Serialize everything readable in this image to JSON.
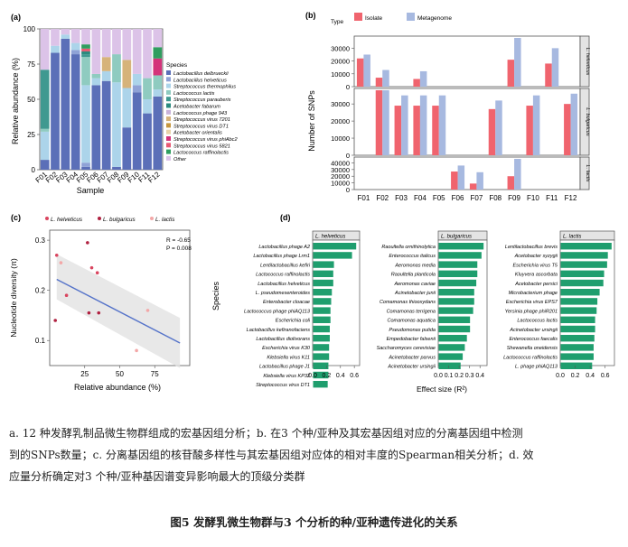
{
  "panel_a": {
    "label": "(a)",
    "ylabel": "Relative abundance (%)",
    "xlabel": "Sample",
    "legend_title": "Species",
    "yticks": [
      "0",
      "25",
      "50",
      "75",
      "100"
    ],
    "legend": [
      {
        "name": "Lactobacillus delbrueckii",
        "color": "#5b6fb8"
      },
      {
        "name": "Lactobacillus helveticus",
        "color": "#8fa2d6"
      },
      {
        "name": "Streptococcus thermophilus",
        "color": "#acd4ea"
      },
      {
        "name": "Lactococcus lactis",
        "color": "#8fcbc0"
      },
      {
        "name": "Streptococcus parauberis",
        "color": "#3f9990"
      },
      {
        "name": "Acetobacter fabarum",
        "color": "#2a8a7e"
      },
      {
        "name": "Lactococcus phage 943",
        "color": "#c9b3da"
      },
      {
        "name": "Streptococcus virus 7201",
        "color": "#d6b37a"
      },
      {
        "name": "Streptococcus virus DT1",
        "color": "#c6973e"
      },
      {
        "name": "Acetobacter orientalis",
        "color": "#e8d3a8"
      },
      {
        "name": "Streptococcus virus phiAbc2",
        "color": "#d4337a"
      },
      {
        "name": "Streptococcus virus 5821",
        "color": "#e85a73"
      },
      {
        "name": "Lactococcus raffinolactis",
        "color": "#2f9e5f"
      },
      {
        "name": "Other",
        "color": "#dcc3e8"
      }
    ],
    "samples": [
      "F01",
      "F02",
      "F03",
      "F04",
      "F05",
      "F06",
      "F07",
      "F08",
      "F09",
      "F10",
      "F11",
      "F12"
    ]
  },
  "panel_b": {
    "label": "(b)",
    "legend_title": "Type",
    "legend": [
      {
        "name": "Isolate",
        "color": "#f0646e"
      },
      {
        "name": "Metagenome",
        "color": "#a7b9e0"
      }
    ],
    "ylabel": "Number of SNPs",
    "strips": [
      "L. helveticus",
      "L. bulgaricus",
      "L. lactis"
    ],
    "yticks": [
      "0",
      "10000",
      "20000",
      "30000"
    ],
    "yticks_bottom": [
      "0",
      "10000",
      "20000",
      "30000",
      "40000"
    ],
    "samples": [
      "F01",
      "F02",
      "F03",
      "F04",
      "F05",
      "F06",
      "F07",
      "F08",
      "F09",
      "F10",
      "F11",
      "F12"
    ]
  },
  "panel_c": {
    "label": "(c)",
    "legend": [
      {
        "name": "L. helveticus",
        "color": "#d9455f"
      },
      {
        "name": "L. bulgaricus",
        "color": "#b02040"
      },
      {
        "name": "L. lactis",
        "color": "#f3a7a7"
      }
    ],
    "stat_r": "R = -0.65",
    "stat_p": "P = 0.008",
    "ylabel": "Nucleotide diversity (π)",
    "xlabel": "Relative abundance (%)",
    "xticks": [
      "25",
      "50",
      "75"
    ],
    "yticks": [
      "0.1",
      "0.2",
      "0.3"
    ]
  },
  "panel_d": {
    "label": "(d)",
    "ylabel": "Species",
    "xlabel": "Effect size (R²)",
    "bar_color": "#1f9e6e",
    "panels": [
      {
        "strip": "L. helveticus",
        "ticks": [
          "0.0",
          "0.2",
          "0.4",
          "0.6"
        ],
        "items": [
          {
            "name": "Lactobacillus phage A2",
            "value": 0.62
          },
          {
            "name": "Lactobacillus phage Lrm1",
            "value": 0.56
          },
          {
            "name": "Lentilactobacillus kefiri",
            "value": 0.3
          },
          {
            "name": "Lactococcus raffinolactis",
            "value": 0.29
          },
          {
            "name": "Lactobacillus helveticus",
            "value": 0.29
          },
          {
            "name": "L. pseudomesenteroides",
            "value": 0.27
          },
          {
            "name": "Enterobacter cloacae",
            "value": 0.26
          },
          {
            "name": "Lactococcus phage phiAQ113",
            "value": 0.25
          },
          {
            "name": "Escherichia coli",
            "value": 0.25
          },
          {
            "name": "Lactobacillus kefiranofaciens",
            "value": 0.24
          },
          {
            "name": "Lactobacillus diolivorans",
            "value": 0.24
          },
          {
            "name": "Escherichia virus K30",
            "value": 0.23
          },
          {
            "name": "Klebsiella virus K11",
            "value": 0.23
          },
          {
            "name": "Lactobacillus phage J1",
            "value": 0.22
          },
          {
            "name": "Klebsiella virus KP32",
            "value": 0.22
          },
          {
            "name": "Streptococcus virus DT1",
            "value": 0.21
          }
        ]
      },
      {
        "strip": "L. bulgaricus",
        "ticks": [
          "0.0",
          "0.1",
          "0.2",
          "0.3",
          "0.4"
        ],
        "items": [
          {
            "name": "Raoultella ornithinolytica",
            "value": 0.43
          },
          {
            "name": "Enterococcus italicus",
            "value": 0.41
          },
          {
            "name": "Aeromonas media",
            "value": 0.37
          },
          {
            "name": "Raoultella planticola",
            "value": 0.37
          },
          {
            "name": "Aeromonas caviae",
            "value": 0.36
          },
          {
            "name": "Acinetobacter junii",
            "value": 0.34
          },
          {
            "name": "Comamonas thiooxydans",
            "value": 0.34
          },
          {
            "name": "Comamonas terrigena",
            "value": 0.33
          },
          {
            "name": "Comamonas aquatica",
            "value": 0.3
          },
          {
            "name": "Pseudomonas putida",
            "value": 0.3
          },
          {
            "name": "Empedobacter falsenii",
            "value": 0.27
          },
          {
            "name": "Saccharomyces cerevisiae",
            "value": 0.25
          },
          {
            "name": "Acinetobacter parvus",
            "value": 0.23
          },
          {
            "name": "Acinetobacter ursingii",
            "value": 0.21
          }
        ]
      },
      {
        "strip": "L. lactis",
        "ticks": [
          "0.0",
          "0.2",
          "0.4",
          "0.6"
        ],
        "items": [
          {
            "name": "Lentilactobacillus brevis",
            "value": 0.68
          },
          {
            "name": "Acetobacter syzygii",
            "value": 0.63
          },
          {
            "name": "Escherichia virus T5",
            "value": 0.62
          },
          {
            "name": "Kluyvera ascorbata",
            "value": 0.58
          },
          {
            "name": "Acetobacter persici",
            "value": 0.57
          },
          {
            "name": "Microbacterium phage",
            "value": 0.52
          },
          {
            "name": "Escherichia virus EPS7",
            "value": 0.49
          },
          {
            "name": "Yersinia phage phiR201",
            "value": 0.48
          },
          {
            "name": "Lactococcus lactis",
            "value": 0.46
          },
          {
            "name": "Acinetobacter ursingii",
            "value": 0.46
          },
          {
            "name": "Enterococcus faecalis",
            "value": 0.45
          },
          {
            "name": "Shewanella oneidensis",
            "value": 0.44
          },
          {
            "name": "Lactococcus raffinolactis",
            "value": 0.44
          },
          {
            "name": "L. phage phiAQ113",
            "value": 0.42
          }
        ]
      }
    ]
  },
  "caption": {
    "line1": "a. 12 种发酵乳制品微生物群组成的宏基因组分析；b. 在3 个种/亚种及其宏基因组对应的分离基因组中检测",
    "line2": "到的SNPs数量；c. 分离基因组的核苷酸多样性与其宏基因组对应体的相对丰度的Spearman相关分析；d. 效",
    "line3": "应量分析确定对3 个种/亚种基因谱变异影响最大的顶级分类群",
    "title": "图5 发酵乳微生物群与3 个分析的种/亚种遗传进化的关系"
  },
  "chart_data": [
    {
      "type": "bar",
      "stacked": true,
      "title": "",
      "xlabel": "Sample",
      "ylabel": "Relative abundance (%)",
      "ylim": [
        0,
        100
      ],
      "categories": [
        "F01",
        "F02",
        "F03",
        "F04",
        "F05",
        "F06",
        "F07",
        "F08",
        "F09",
        "F10",
        "F11",
        "F12"
      ],
      "series": [
        {
          "name": "Lactobacillus delbrueckii",
          "values": [
            7,
            83,
            93,
            82,
            2,
            60,
            63,
            2,
            30,
            55,
            40,
            52
          ]
        },
        {
          "name": "Lactobacillus helveticus",
          "values": [
            0,
            0,
            0,
            3,
            3,
            0,
            0,
            0,
            0,
            5,
            0,
            0
          ]
        },
        {
          "name": "Streptococcus thermophilus",
          "values": [
            20,
            5,
            3,
            5,
            55,
            5,
            7,
            60,
            28,
            8,
            10,
            5
          ]
        },
        {
          "name": "Lactococcus lactis",
          "values": [
            2,
            0,
            0,
            0,
            20,
            3,
            0,
            20,
            0,
            0,
            15,
            10
          ]
        },
        {
          "name": "Streptococcus parauberis",
          "values": [
            42,
            0,
            0,
            0,
            2,
            0,
            0,
            0,
            0,
            0,
            0,
            0
          ]
        },
        {
          "name": "Acetobacter fabarum",
          "values": [
            0,
            0,
            0,
            0,
            2,
            0,
            0,
            0,
            0,
            0,
            0,
            0
          ]
        },
        {
          "name": "Lactococcus phage 943",
          "values": [
            0,
            0,
            0,
            0,
            0,
            0,
            0,
            0,
            0,
            0,
            0,
            0
          ]
        },
        {
          "name": "Streptococcus virus 7201",
          "values": [
            0,
            0,
            0,
            0,
            0,
            0,
            10,
            0,
            20,
            0,
            0,
            0
          ]
        },
        {
          "name": "Streptococcus virus DT1",
          "values": [
            0,
            0,
            0,
            0,
            0,
            0,
            0,
            0,
            0,
            0,
            0,
            0
          ]
        },
        {
          "name": "Acetobacter orientalis",
          "values": [
            0,
            0,
            0,
            0,
            0,
            0,
            0,
            0,
            0,
            0,
            0,
            0
          ]
        },
        {
          "name": "Streptococcus virus phiAbc2",
          "values": [
            0,
            0,
            0,
            0,
            0,
            0,
            0,
            0,
            0,
            0,
            0,
            12
          ]
        },
        {
          "name": "Streptococcus virus 5821",
          "values": [
            0,
            0,
            0,
            0,
            2,
            0,
            0,
            0,
            0,
            0,
            0,
            0
          ]
        },
        {
          "name": "Lactococcus raffinolactis",
          "values": [
            0,
            0,
            0,
            0,
            3,
            0,
            0,
            0,
            0,
            0,
            0,
            8
          ]
        },
        {
          "name": "Other",
          "values": [
            29,
            12,
            4,
            10,
            11,
            32,
            20,
            18,
            22,
            32,
            35,
            13
          ]
        }
      ]
    },
    {
      "type": "bar",
      "title": "",
      "xlabel": "",
      "ylabel": "Number of SNPs",
      "categories": [
        "F01",
        "F02",
        "F03",
        "F04",
        "F05",
        "F06",
        "F07",
        "F08",
        "F09",
        "F10",
        "F11",
        "F12"
      ],
      "facets": [
        {
          "name": "L. helveticus",
          "ylim": [
            0,
            38000
          ],
          "series": [
            {
              "name": "Isolate",
              "values": [
                22000,
                7000,
                0,
                6000,
                0,
                0,
                0,
                0,
                21000,
                0,
                18000,
                0
              ]
            },
            {
              "name": "Metagenome",
              "values": [
                25000,
                13000,
                0,
                12000,
                0,
                0,
                0,
                0,
                38000,
                0,
                30000,
                0
              ]
            }
          ]
        },
        {
          "name": "L. bulgaricus",
          "ylim": [
            0,
            38000
          ],
          "series": [
            {
              "name": "Isolate",
              "values": [
                0,
                38000,
                29000,
                29000,
                29000,
                0,
                0,
                27000,
                0,
                29000,
                0,
                30000
              ]
            },
            {
              "name": "Metagenome",
              "values": [
                0,
                38000,
                35000,
                35000,
                35000,
                0,
                0,
                32000,
                0,
                35000,
                0,
                36000
              ]
            }
          ]
        },
        {
          "name": "L. lactis",
          "ylim": [
            0,
            46000
          ],
          "series": [
            {
              "name": "Isolate",
              "values": [
                0,
                0,
                0,
                0,
                0,
                27000,
                9000,
                0,
                20000,
                0,
                0,
                0
              ]
            },
            {
              "name": "Metagenome",
              "values": [
                0,
                0,
                0,
                0,
                0,
                36000,
                26000,
                0,
                46000,
                0,
                0,
                0
              ]
            }
          ]
        }
      ]
    },
    {
      "type": "scatter",
      "title": "",
      "xlabel": "Relative abundance (%)",
      "ylabel": "Nucleotide diversity (π)",
      "xlim": [
        0,
        100
      ],
      "ylim": [
        0.05,
        0.32
      ],
      "series": [
        {
          "name": "L. helveticus",
          "points": [
            [
              5,
              0.27
            ],
            [
              12,
              0.19
            ],
            [
              30,
              0.245
            ],
            [
              34,
              0.235
            ]
          ]
        },
        {
          "name": "L. bulgaricus",
          "points": [
            [
              4,
              0.14
            ],
            [
              27,
              0.295
            ],
            [
              28,
              0.155
            ],
            [
              35,
              0.155
            ]
          ]
        },
        {
          "name": "L. lactis",
          "points": [
            [
              8,
              0.255
            ],
            [
              70,
              0.16
            ],
            [
              62,
              0.08
            ]
          ]
        }
      ],
      "fit": {
        "x": [
          5,
          93
        ],
        "y": [
          0.222,
          0.095
        ]
      },
      "annotations": [
        "R = -0.65",
        "P = 0.008"
      ]
    }
  ]
}
